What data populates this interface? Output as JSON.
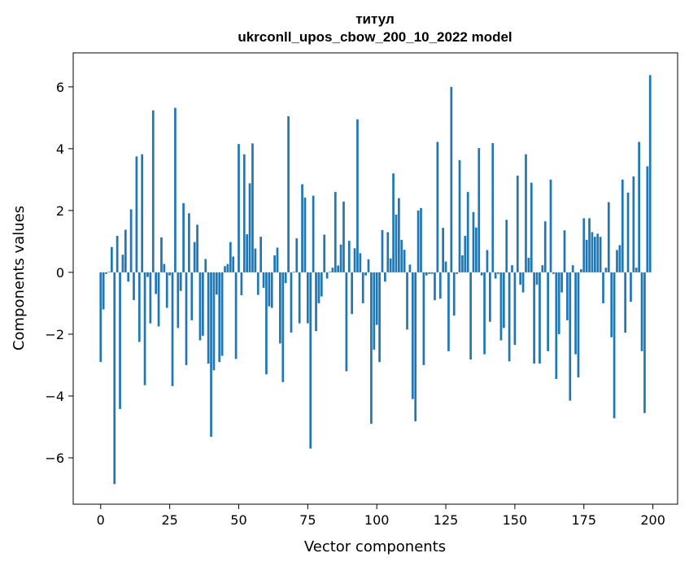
{
  "chart_data": {
    "type": "bar",
    "title": "титул",
    "subtitle": "ukrconll_upos_cbow_200_10_2022 model",
    "xlabel": "Vector components",
    "ylabel": "Components values",
    "xlim": [
      -9.95,
      208.95
    ],
    "ylim": [
      -7.5,
      7.1
    ],
    "xticks": [
      0,
      25,
      50,
      75,
      100,
      125,
      150,
      175,
      200
    ],
    "yticks": [
      -6,
      -4,
      -2,
      0,
      2,
      4,
      6
    ],
    "bar_color": "#1f77b4",
    "values": [
      -2.9,
      -1.2,
      -0.05,
      0.02,
      0.82,
      -6.85,
      1.18,
      -4.42,
      0.57,
      1.38,
      -0.3,
      2.04,
      -0.9,
      3.75,
      -2.25,
      3.82,
      -3.65,
      -0.15,
      -1.65,
      5.24,
      -0.7,
      -1.75,
      1.13,
      0.27,
      -1.15,
      -0.1,
      -3.68,
      5.32,
      -1.8,
      -0.6,
      2.24,
      -3.0,
      1.91,
      -1.55,
      0.98,
      1.54,
      -2.2,
      -2.05,
      0.43,
      -2.95,
      -5.32,
      -3.17,
      -0.72,
      -2.9,
      -2.7,
      0.2,
      0.27,
      0.98,
      0.51,
      -2.8,
      4.15,
      -0.74,
      3.82,
      1.23,
      2.88,
      4.17,
      0.77,
      -0.73,
      1.15,
      -0.5,
      -3.3,
      -1.1,
      -1.15,
      0.55,
      0.8,
      -2.3,
      -3.55,
      -0.35,
      5.05,
      -1.95,
      0.02,
      1.1,
      -1.65,
      2.85,
      2.42,
      -1.65,
      -5.7,
      2.48,
      -1.9,
      -1.0,
      -0.78,
      1.22,
      -0.2,
      0.02,
      0.15,
      2.6,
      0.22,
      0.9,
      2.29,
      -3.2,
      1.02,
      -1.35,
      0.78,
      4.95,
      0.62,
      -1.0,
      -0.1,
      0.42,
      -4.9,
      -2.5,
      -1.7,
      -2.9,
      1.37,
      -0.3,
      1.3,
      0.45,
      3.2,
      1.87,
      2.4,
      1.05,
      0.73,
      -1.85,
      0.25,
      -4.1,
      -4.82,
      2.0,
      2.08,
      -3.0,
      -0.1,
      -0.05,
      -0.05,
      -0.9,
      4.22,
      -0.85,
      1.44,
      0.35,
      -2.55,
      6.0,
      -1.4,
      -0.05,
      3.63,
      0.55,
      1.18,
      2.6,
      -2.82,
      1.95,
      1.45,
      4.02,
      -0.1,
      -2.65,
      0.72,
      -1.6,
      4.18,
      -0.2,
      -0.05,
      -2.2,
      -1.8,
      1.7,
      -2.88,
      0.23,
      -2.35,
      3.13,
      -0.4,
      -0.65,
      3.82,
      0.47,
      2.9,
      -2.95,
      -0.4,
      -2.95,
      0.23,
      1.65,
      -2.55,
      3.0,
      -0.05,
      -3.45,
      -2.0,
      -0.65,
      1.36,
      -1.55,
      -4.15,
      0.23,
      -2.65,
      -3.4,
      0.1,
      1.75,
      1.05,
      1.75,
      1.3,
      1.15,
      1.25,
      1.15,
      -1.0,
      0.15,
      2.27,
      -2.1,
      -4.72,
      0.72,
      0.88,
      3.0,
      -1.95,
      2.58,
      -0.95,
      3.1,
      0.15,
      4.22,
      -2.55,
      -4.55,
      3.43,
      6.38
    ]
  }
}
